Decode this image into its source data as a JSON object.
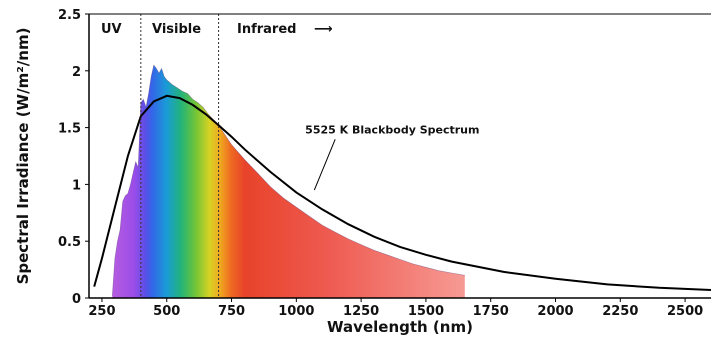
{
  "chart_data": {
    "type": "area",
    "xlabel": "Wavelength (nm)",
    "ylabel": "Spectral Irradiance (W/m²/nm)",
    "xlim": [
      200,
      2600
    ],
    "ylim": [
      0,
      2.5
    ],
    "x_ticks": [
      "250",
      "500",
      "750",
      "1000",
      "1250",
      "1500",
      "1750",
      "2000",
      "2250",
      "2500"
    ],
    "y_ticks": [
      "0",
      "0.5",
      "1",
      "1.5",
      "2",
      "2.5"
    ],
    "grid": false,
    "regions": [
      {
        "label": "UV",
        "x": 300
      },
      {
        "label": "Visible",
        "x": 550
      },
      {
        "label": "Infrared",
        "x": 900
      }
    ],
    "region_boundaries": [
      400,
      700
    ],
    "infrared_arrow": "⟶",
    "annotation": {
      "text": "5525 K Blackbody Spectrum",
      "x": 1420,
      "y": 1.45,
      "point_x": 1000,
      "point_y": 0.95
    },
    "series": [
      {
        "type": "area",
        "x": [
          290,
          300,
          310,
          320,
          330,
          340,
          350,
          360,
          370,
          380,
          390,
          400,
          410,
          420,
          430,
          440,
          450,
          460,
          470,
          480,
          490,
          500,
          520,
          540,
          560,
          580,
          600,
          620,
          640,
          660,
          680,
          700,
          750,
          800,
          850,
          900,
          950,
          1000,
          1050,
          1100,
          1150,
          1200,
          1250,
          1300,
          1350,
          1400,
          1450,
          1500,
          1550,
          1600,
          1650
        ],
        "y": [
          0.02,
          0.35,
          0.5,
          0.6,
          0.85,
          0.9,
          0.92,
          1.0,
          1.1,
          1.2,
          1.15,
          1.72,
          1.75,
          1.68,
          1.8,
          1.95,
          2.05,
          2.02,
          1.98,
          2.02,
          1.95,
          1.92,
          1.88,
          1.85,
          1.82,
          1.8,
          1.75,
          1.72,
          1.68,
          1.62,
          1.57,
          1.52,
          1.35,
          1.22,
          1.1,
          0.98,
          0.88,
          0.8,
          0.72,
          0.64,
          0.58,
          0.52,
          0.47,
          0.42,
          0.38,
          0.34,
          0.3,
          0.27,
          0.24,
          0.22,
          0.2
        ]
      },
      {
        "type": "line",
        "x": [
          220,
          250,
          300,
          350,
          400,
          450,
          500,
          550,
          600,
          650,
          700,
          750,
          800,
          900,
          1000,
          1100,
          1200,
          1300,
          1400,
          1500,
          1600,
          1800,
          2000,
          2200,
          2400,
          2600
        ],
        "y": [
          0.1,
          0.35,
          0.8,
          1.25,
          1.6,
          1.73,
          1.78,
          1.76,
          1.7,
          1.62,
          1.52,
          1.42,
          1.31,
          1.11,
          0.93,
          0.78,
          0.65,
          0.54,
          0.45,
          0.38,
          0.32,
          0.23,
          0.17,
          0.12,
          0.09,
          0.07
        ]
      }
    ]
  }
}
